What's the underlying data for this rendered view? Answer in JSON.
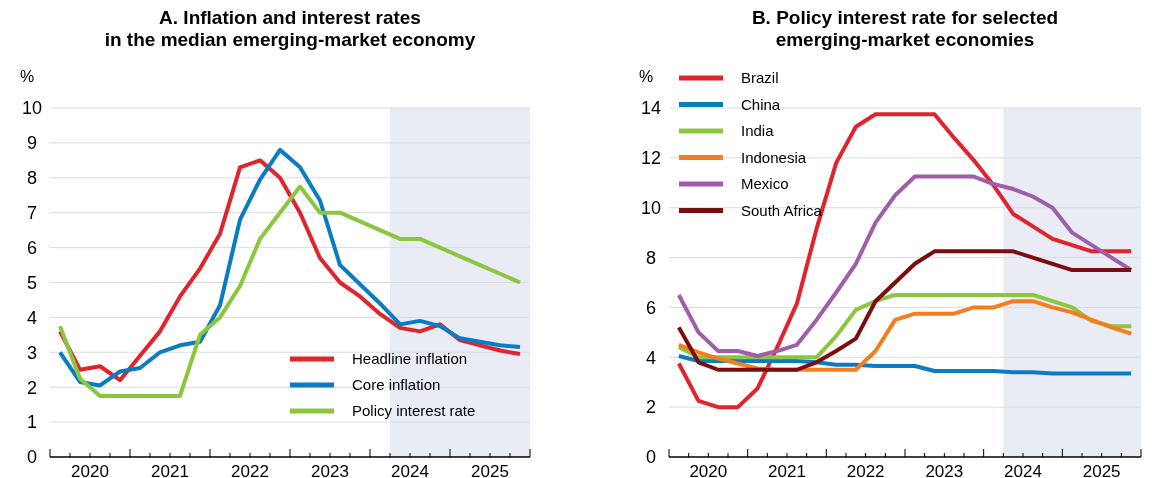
{
  "chart_data": [
    {
      "type": "line",
      "title": "A. Inflation and interest rates\nin the median emerging-market economy",
      "ylabel": "%",
      "x": [
        2020.125,
        2020.375,
        2020.625,
        2020.875,
        2021.125,
        2021.375,
        2021.625,
        2021.875,
        2022.125,
        2022.375,
        2022.625,
        2022.875,
        2023.125,
        2023.375,
        2023.625,
        2023.875,
        2024.125,
        2024.375,
        2024.625,
        2024.875,
        2025.125,
        2025.375,
        2025.625,
        2025.875
      ],
      "series": [
        {
          "name": "Headline inflation",
          "color": "#e0242d",
          "values": [
            3.6,
            2.5,
            2.6,
            2.2,
            2.9,
            3.6,
            4.6,
            5.4,
            6.4,
            8.3,
            8.5,
            8.0,
            7.0,
            5.7,
            5.0,
            4.6,
            4.1,
            3.7,
            3.6,
            3.8,
            3.35,
            3.2,
            3.05,
            2.95
          ]
        },
        {
          "name": "Core inflation",
          "color": "#0a7cc4",
          "values": [
            3.0,
            2.15,
            2.05,
            2.45,
            2.55,
            3.0,
            3.2,
            3.3,
            4.35,
            6.8,
            7.95,
            8.8,
            8.3,
            7.35,
            5.5,
            4.95,
            4.4,
            3.8,
            3.9,
            3.75,
            3.4,
            3.3,
            3.2,
            3.15
          ]
        },
        {
          "name": "Policy interest rate",
          "color": "#8cc63f",
          "values": [
            3.75,
            2.25,
            1.75,
            1.75,
            1.75,
            1.75,
            1.75,
            3.5,
            4.0,
            4.9,
            6.25,
            7.0,
            7.75,
            7.0,
            7.0,
            6.75,
            6.5,
            6.25,
            6.25,
            6.0,
            5.75,
            5.5,
            5.25,
            5.0
          ]
        }
      ],
      "xlim": [
        2020,
        2026
      ],
      "xticks": [
        {
          "value": 2020,
          "label": null
        },
        {
          "value": 2020.25,
          "label": null
        },
        {
          "value": 2020.5,
          "label": "2020"
        },
        {
          "value": 2020.75,
          "label": null
        },
        {
          "value": 2021,
          "label": null
        },
        {
          "value": 2021.25,
          "label": null
        },
        {
          "value": 2021.5,
          "label": "2021"
        },
        {
          "value": 2021.75,
          "label": null
        },
        {
          "value": 2022,
          "label": null
        },
        {
          "value": 2022.25,
          "label": null
        },
        {
          "value": 2022.5,
          "label": "2022"
        },
        {
          "value": 2022.75,
          "label": null
        },
        {
          "value": 2023,
          "label": null
        },
        {
          "value": 2023.25,
          "label": null
        },
        {
          "value": 2023.5,
          "label": "2023"
        },
        {
          "value": 2023.75,
          "label": null
        },
        {
          "value": 2024,
          "label": null
        },
        {
          "value": 2024.25,
          "label": null
        },
        {
          "value": 2024.5,
          "label": "2024"
        },
        {
          "value": 2024.75,
          "label": null
        },
        {
          "value": 2025,
          "label": null
        },
        {
          "value": 2025.25,
          "label": null
        },
        {
          "value": 2025.5,
          "label": "2025"
        },
        {
          "value": 2025.75,
          "label": null
        },
        {
          "value": 2026,
          "label": null
        }
      ],
      "ylim": [
        0,
        10
      ],
      "yticks": [
        0,
        1,
        2,
        3,
        4,
        5,
        6,
        7,
        8,
        9,
        10
      ],
      "grid": "y",
      "legend": "bottom right",
      "line_style": "solid",
      "marker": "none",
      "bands": [
        {
          "axis": "x",
          "from": 2024.25,
          "to": 2026,
          "color": "#e9ecf5"
        }
      ]
    },
    {
      "type": "line",
      "title": "B. Policy interest rate for selected\nemerging-market economies",
      "ylabel": "%",
      "x": [
        2020.125,
        2020.375,
        2020.625,
        2020.875,
        2021.125,
        2021.375,
        2021.625,
        2021.875,
        2022.125,
        2022.375,
        2022.625,
        2022.875,
        2023.125,
        2023.375,
        2023.625,
        2023.875,
        2024.125,
        2024.375,
        2024.625,
        2024.875,
        2025.125,
        2025.375,
        2025.625,
        2025.875
      ],
      "series": [
        {
          "name": "Brazil",
          "color": "#e0242d",
          "values": [
            3.75,
            2.25,
            2.0,
            2.0,
            2.75,
            4.4,
            6.15,
            9.15,
            11.8,
            13.25,
            13.75,
            13.75,
            13.75,
            13.75,
            12.8,
            11.9,
            10.9,
            9.75,
            9.25,
            8.75,
            8.5,
            8.25,
            8.25,
            8.25
          ]
        },
        {
          "name": "China",
          "color": "#0a7cc4",
          "values": [
            4.05,
            3.85,
            3.85,
            3.85,
            3.85,
            3.85,
            3.85,
            3.8,
            3.7,
            3.7,
            3.65,
            3.65,
            3.65,
            3.45,
            3.45,
            3.45,
            3.45,
            3.4,
            3.4,
            3.35,
            3.35,
            3.35,
            3.35,
            3.35
          ]
        },
        {
          "name": "India",
          "color": "#8cc63f",
          "values": [
            4.4,
            4.0,
            4.0,
            4.0,
            4.0,
            4.0,
            4.0,
            4.0,
            4.85,
            5.9,
            6.25,
            6.5,
            6.5,
            6.5,
            6.5,
            6.5,
            6.5,
            6.5,
            6.5,
            6.25,
            6.0,
            5.45,
            5.25,
            5.25
          ]
        },
        {
          "name": "Indonesia",
          "color": "#f47d20",
          "values": [
            4.5,
            4.2,
            3.95,
            3.75,
            3.55,
            3.5,
            3.5,
            3.5,
            3.5,
            3.5,
            4.25,
            5.5,
            5.75,
            5.75,
            5.75,
            6.0,
            6.0,
            6.25,
            6.25,
            6.0,
            5.8,
            5.5,
            5.2,
            4.95
          ]
        },
        {
          "name": "Mexico",
          "color": "#a05ea8",
          "values": [
            6.5,
            5.0,
            4.25,
            4.25,
            4.05,
            4.25,
            4.5,
            5.5,
            6.6,
            7.75,
            9.4,
            10.5,
            11.25,
            11.25,
            11.25,
            11.25,
            10.95,
            10.75,
            10.45,
            10.0,
            9.0,
            8.5,
            8.0,
            7.5
          ]
        },
        {
          "name": "South Africa",
          "color": "#7d0c10",
          "values": [
            5.2,
            3.8,
            3.5,
            3.5,
            3.5,
            3.5,
            3.5,
            3.8,
            4.25,
            4.75,
            6.25,
            7.0,
            7.75,
            8.25,
            8.25,
            8.25,
            8.25,
            8.25,
            8.0,
            7.75,
            7.5,
            7.5,
            7.5,
            7.5
          ]
        }
      ],
      "xlim": [
        2020,
        2026
      ],
      "xticks": [
        {
          "value": 2020,
          "label": null
        },
        {
          "value": 2020.25,
          "label": null
        },
        {
          "value": 2020.5,
          "label": "2020"
        },
        {
          "value": 2020.75,
          "label": null
        },
        {
          "value": 2021,
          "label": null
        },
        {
          "value": 2021.25,
          "label": null
        },
        {
          "value": 2021.5,
          "label": "2021"
        },
        {
          "value": 2021.75,
          "label": null
        },
        {
          "value": 2022,
          "label": null
        },
        {
          "value": 2022.25,
          "label": null
        },
        {
          "value": 2022.5,
          "label": "2022"
        },
        {
          "value": 2022.75,
          "label": null
        },
        {
          "value": 2023,
          "label": null
        },
        {
          "value": 2023.25,
          "label": null
        },
        {
          "value": 2023.5,
          "label": "2023"
        },
        {
          "value": 2023.75,
          "label": null
        },
        {
          "value": 2024,
          "label": null
        },
        {
          "value": 2024.25,
          "label": null
        },
        {
          "value": 2024.5,
          "label": "2024"
        },
        {
          "value": 2024.75,
          "label": null
        },
        {
          "value": 2025,
          "label": null
        },
        {
          "value": 2025.25,
          "label": null
        },
        {
          "value": 2025.5,
          "label": "2025"
        },
        {
          "value": 2025.75,
          "label": null
        },
        {
          "value": 2026,
          "label": null
        }
      ],
      "ylim": [
        0,
        14
      ],
      "yticks": [
        0,
        2,
        4,
        6,
        8,
        10,
        12,
        14
      ],
      "grid": "y",
      "legend": "top left",
      "line_style": "solid",
      "marker": "none",
      "bands": [
        {
          "axis": "x",
          "from": 2024.25,
          "to": 2026,
          "color": "#e9ecf5"
        }
      ]
    }
  ]
}
